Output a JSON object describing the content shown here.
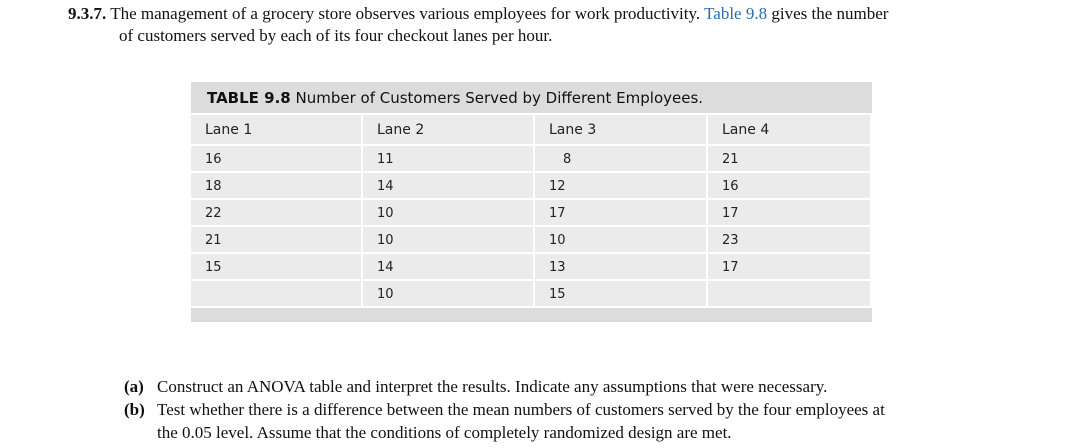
{
  "problem": {
    "number": "9.3.7.",
    "line1_before": "The management of a grocery store observes various employees for work productivity.",
    "table_ref": "Table 9.8",
    "line1_after": "gives the number",
    "line2": "of customers served by each of its four checkout lanes per hour."
  },
  "table": {
    "caption_label": "TABLE 9.8",
    "caption_text": "Number of Customers Served by Different Employees.",
    "headers": [
      "Lane 1",
      "Lane 2",
      "Lane 3",
      "Lane 4"
    ],
    "rows": [
      [
        "16",
        "11",
        "8",
        "21"
      ],
      [
        "18",
        "14",
        "12",
        "16"
      ],
      [
        "22",
        "10",
        "17",
        "17"
      ],
      [
        "21",
        "10",
        "10",
        "23"
      ],
      [
        "15",
        "14",
        "13",
        "17"
      ],
      [
        "",
        "10",
        "15",
        ""
      ]
    ]
  },
  "parts": {
    "a_label": "(a)",
    "a_text": "Construct an ANOVA table and interpret the results. Indicate any assumptions that were necessary.",
    "b_label": "(b)",
    "b_text_line1": "Test whether there is a difference between the mean numbers of customers served by the four employees at",
    "b_text_line2": "the 0.05 level. Assume that the conditions of completely randomized design are met."
  }
}
